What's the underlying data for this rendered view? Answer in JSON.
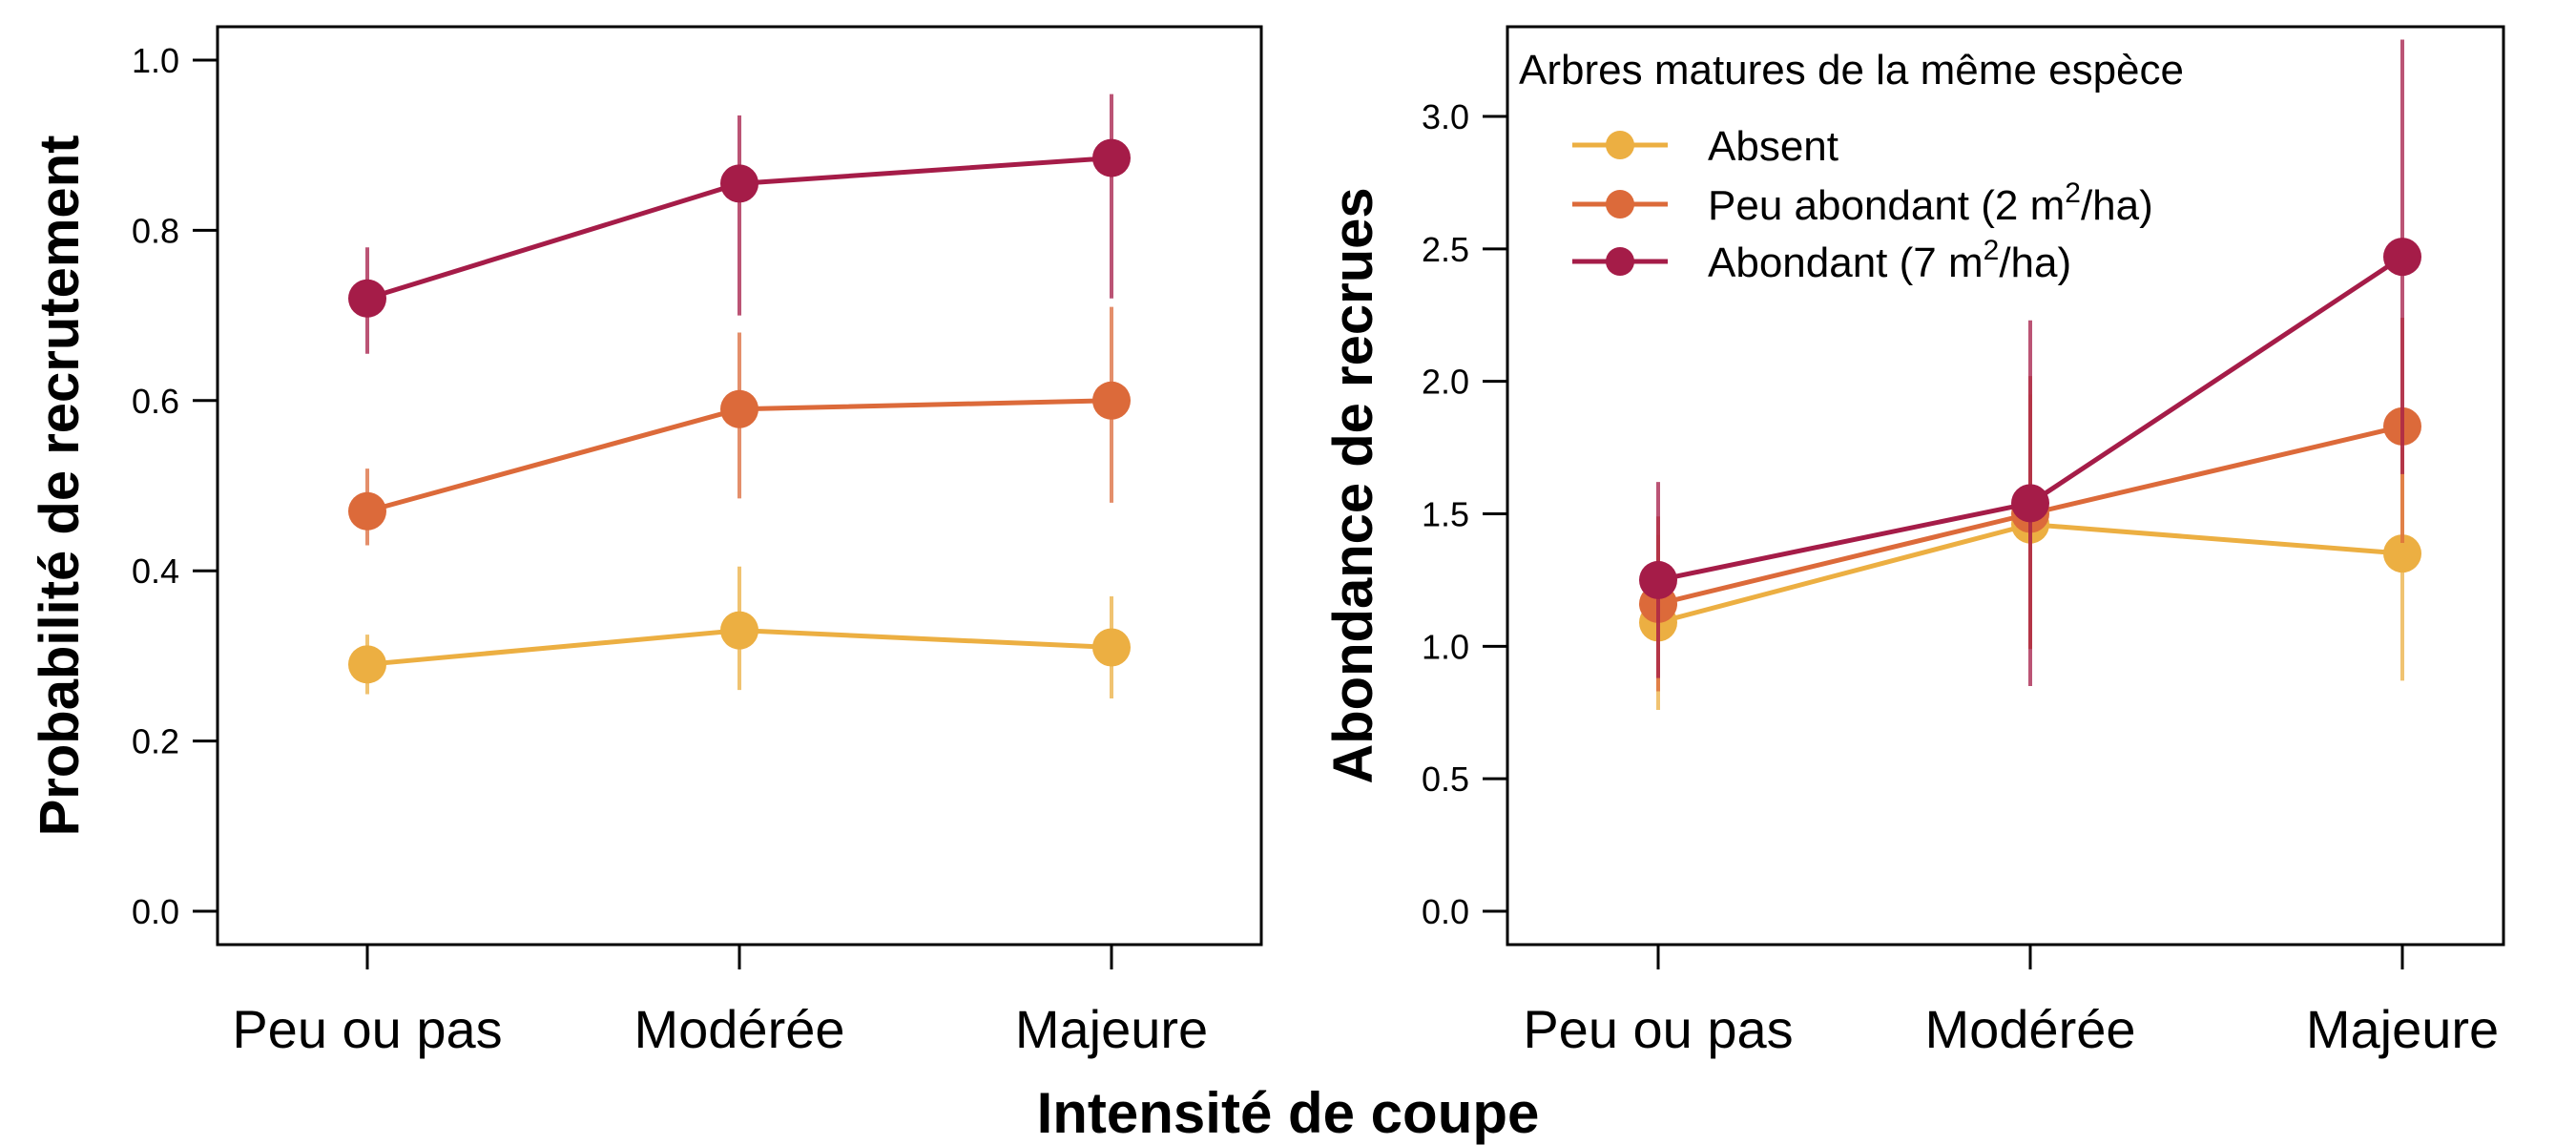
{
  "xlabel": "Intensité de coupe",
  "colors": {
    "absent": "#ecaf42",
    "peu": "#dc6a3a",
    "abondant": "#a51c48"
  },
  "legend": {
    "title": "Arbres matures de la même espèce",
    "entries": [
      {
        "key": "absent",
        "label": "Absent"
      },
      {
        "key": "peu",
        "label_main": "Peu abondant (2 m",
        "sup": "2",
        "label_tail": "/ha)"
      },
      {
        "key": "abondant",
        "label_main": "Abondant (7 m",
        "sup": "2",
        "label_tail": "/ha)"
      }
    ]
  },
  "chart_data": [
    {
      "type": "line",
      "ylabel": "Probabilité de recrutement",
      "categories": [
        "Peu ou pas",
        "Modérée",
        "Majeure"
      ],
      "ylim": [
        0,
        1.0
      ],
      "yticks": [
        "0.0",
        "0.2",
        "0.4",
        "0.6",
        "0.8",
        "1.0"
      ],
      "grid": false,
      "series": [
        {
          "key": "absent",
          "name": "Absent",
          "values": [
            0.29,
            0.33,
            0.31
          ],
          "lower": [
            0.255,
            0.26,
            0.25
          ],
          "upper": [
            0.325,
            0.405,
            0.37
          ]
        },
        {
          "key": "peu",
          "name": "Peu abondant (2 m²/ha)",
          "values": [
            0.47,
            0.59,
            0.6
          ],
          "lower": [
            0.43,
            0.485,
            0.48
          ],
          "upper": [
            0.52,
            0.68,
            0.71
          ]
        },
        {
          "key": "abondant",
          "name": "Abondant (7 m²/ha)",
          "values": [
            0.72,
            0.855,
            0.885
          ],
          "lower": [
            0.655,
            0.7,
            0.72
          ],
          "upper": [
            0.78,
            0.935,
            0.96
          ]
        }
      ]
    },
    {
      "type": "line",
      "ylabel": "Abondance de recrues",
      "categories": [
        "Peu ou pas",
        "Modérée",
        "Majeure"
      ],
      "ylim": [
        0,
        3.0
      ],
      "yticks": [
        "0.0",
        "0.5",
        "1.0",
        "1.5",
        "2.0",
        "2.5",
        "3.0"
      ],
      "grid": false,
      "legend_position": "top-left",
      "series": [
        {
          "key": "absent",
          "name": "Absent",
          "values": [
            1.09,
            1.46,
            1.35
          ],
          "lower": [
            0.76,
            0.99,
            0.87
          ],
          "upper": [
            1.42,
            1.95,
            1.75
          ]
        },
        {
          "key": "peu",
          "name": "Peu abondant (2 m²/ha)",
          "values": [
            1.16,
            1.5,
            1.83
          ],
          "lower": [
            0.83,
            0.99,
            1.39
          ],
          "upper": [
            1.49,
            2.02,
            2.24
          ]
        },
        {
          "key": "abondant",
          "name": "Abondant (7 m²/ha)",
          "values": [
            1.25,
            1.54,
            2.47
          ],
          "lower": [
            0.88,
            0.85,
            1.65
          ],
          "upper": [
            1.62,
            2.23,
            3.29
          ]
        }
      ]
    }
  ]
}
